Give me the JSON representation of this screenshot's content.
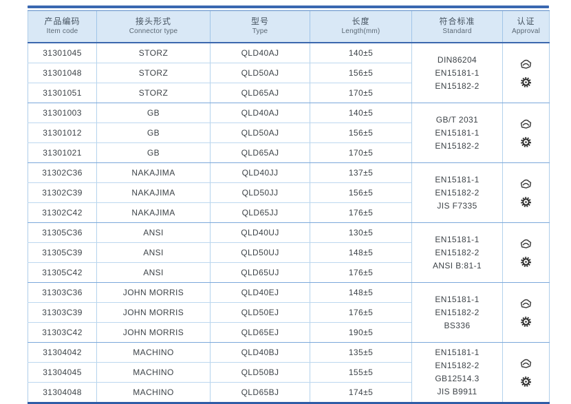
{
  "colors": {
    "accent_blue": "#2e5ca6",
    "header_bg": "#d9e8f6",
    "grid_light_blue": "#aecde9",
    "text_gray": "#3c4247"
  },
  "table": {
    "columns": [
      {
        "zh": "产品编码",
        "en": "Item code"
      },
      {
        "zh": "接头形式",
        "en": "Connector type"
      },
      {
        "zh": "型号",
        "en": "Type"
      },
      {
        "zh": "长度",
        "en": "Length(mm)"
      },
      {
        "zh": "符合标准",
        "en": "Standard"
      },
      {
        "zh": "认证",
        "en": "Approval"
      }
    ],
    "groups": [
      {
        "rows": [
          {
            "item_code": "31301045",
            "connector_type": "STORZ",
            "type": "QLD40AJ",
            "length": "140±5"
          },
          {
            "item_code": "31301048",
            "connector_type": "STORZ",
            "type": "QLD50AJ",
            "length": "156±5"
          },
          {
            "item_code": "31301051",
            "connector_type": "STORZ",
            "type": "QLD65AJ",
            "length": "170±5"
          }
        ],
        "standards": [
          "DIN86204",
          "EN15181-1",
          "EN15182-2"
        ],
        "approval_icons": [
          "certification-stamp",
          "wheel-mark"
        ]
      },
      {
        "rows": [
          {
            "item_code": "31301003",
            "connector_type": "GB",
            "type": "QLD40AJ",
            "length": "140±5"
          },
          {
            "item_code": "31301012",
            "connector_type": "GB",
            "type": "QLD50AJ",
            "length": "156±5"
          },
          {
            "item_code": "31301021",
            "connector_type": "GB",
            "type": "QLD65AJ",
            "length": "170±5"
          }
        ],
        "standards": [
          "GB/T 2031",
          "EN15181-1",
          "EN15182-2"
        ],
        "approval_icons": [
          "certification-stamp",
          "wheel-mark"
        ]
      },
      {
        "rows": [
          {
            "item_code": "31302C36",
            "connector_type": "NAKAJIMA",
            "type": "QLD40JJ",
            "length": "137±5"
          },
          {
            "item_code": "31302C39",
            "connector_type": "NAKAJIMA",
            "type": "QLD50JJ",
            "length": "156±5"
          },
          {
            "item_code": "31302C42",
            "connector_type": "NAKAJIMA",
            "type": "QLD65JJ",
            "length": "176±5"
          }
        ],
        "standards": [
          "EN15181-1",
          "EN15182-2",
          "JIS F7335"
        ],
        "approval_icons": [
          "certification-stamp",
          "wheel-mark"
        ]
      },
      {
        "rows": [
          {
            "item_code": "31305C36",
            "connector_type": "ANSI",
            "type": "QLD40UJ",
            "length": "130±5"
          },
          {
            "item_code": "31305C39",
            "connector_type": "ANSI",
            "type": "QLD50UJ",
            "length": "148±5"
          },
          {
            "item_code": "31305C42",
            "connector_type": "ANSI",
            "type": "QLD65UJ",
            "length": "176±5"
          }
        ],
        "standards": [
          "EN15181-1",
          "EN15182-2",
          "ANSI B:81-1"
        ],
        "approval_icons": [
          "certification-stamp",
          "wheel-mark"
        ]
      },
      {
        "rows": [
          {
            "item_code": "31303C36",
            "connector_type": "JOHN MORRIS",
            "type": "QLD40EJ",
            "length": "148±5"
          },
          {
            "item_code": "31303C39",
            "connector_type": "JOHN MORRIS",
            "type": "QLD50EJ",
            "length": "176±5"
          },
          {
            "item_code": "31303C42",
            "connector_type": "JOHN MORRIS",
            "type": "QLD65EJ",
            "length": "190±5"
          }
        ],
        "standards": [
          "EN15181-1",
          "EN15182-2",
          "BS336"
        ],
        "approval_icons": [
          "certification-stamp",
          "wheel-mark"
        ]
      },
      {
        "rows": [
          {
            "item_code": "31304042",
            "connector_type": "MACHINO",
            "type": "QLD40BJ",
            "length": "135±5"
          },
          {
            "item_code": "31304045",
            "connector_type": "MACHINO",
            "type": "QLD50BJ",
            "length": "155±5"
          },
          {
            "item_code": "31304048",
            "connector_type": "MACHINO",
            "type": "QLD65BJ",
            "length": "174±5"
          }
        ],
        "standards": [
          "EN15181-1",
          "EN15182-2",
          "GB12514.3",
          "JIS B9911"
        ],
        "approval_icons": [
          "certification-stamp",
          "wheel-mark"
        ]
      }
    ]
  }
}
